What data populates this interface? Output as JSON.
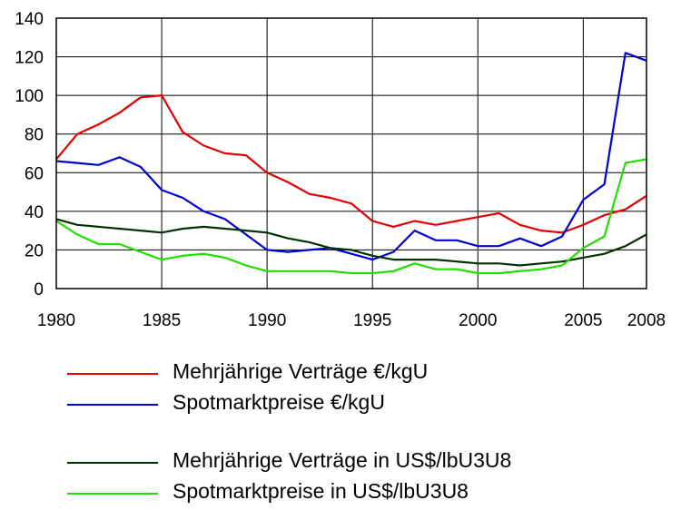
{
  "chart_data": {
    "type": "line",
    "title": "",
    "xlabel": "",
    "ylabel": "",
    "xlim": [
      1980,
      2008
    ],
    "ylim": [
      0,
      140
    ],
    "x_ticks": [
      1980,
      1985,
      1990,
      1995,
      2000,
      2005,
      2008
    ],
    "x_tick_labels": [
      "1980",
      "1985",
      "1990",
      "1995",
      "2000",
      "2005",
      "2008"
    ],
    "y_ticks": [
      0,
      20,
      40,
      60,
      80,
      100,
      120,
      140
    ],
    "y_tick_labels": [
      "0",
      "20",
      "40",
      "60",
      "80",
      "100",
      "120",
      "140"
    ],
    "grid": true,
    "legend_position": "bottom",
    "x": [
      1980,
      1981,
      1982,
      1983,
      1984,
      1985,
      1986,
      1987,
      1988,
      1989,
      1990,
      1991,
      1992,
      1993,
      1994,
      1995,
      1996,
      1997,
      1998,
      1999,
      2000,
      2001,
      2002,
      2003,
      2004,
      2005,
      2006,
      2007,
      2008
    ],
    "series": [
      {
        "name": "Mehrjährige Verträge €/kgU",
        "color": "#e00000",
        "values": [
          67,
          80,
          85,
          91,
          99,
          100,
          81,
          74,
          70,
          69,
          60,
          55,
          49,
          47,
          44,
          35,
          32,
          35,
          33,
          35,
          37,
          39,
          33,
          30,
          29,
          33,
          38,
          41,
          48
        ]
      },
      {
        "name": "Spotmarktpreise €/kgU",
        "color": "#0000cc",
        "values": [
          66,
          65,
          64,
          68,
          63,
          51,
          47,
          40,
          36,
          28,
          20,
          19,
          20,
          21,
          18,
          15,
          19,
          30,
          25,
          25,
          22,
          22,
          26,
          22,
          27,
          46,
          54,
          122,
          118
        ]
      },
      {
        "name": "Mehrjährige Verträge in US$/lbU3U8",
        "color": "#003300",
        "values": [
          36,
          33,
          32,
          31,
          30,
          29,
          31,
          32,
          31,
          30,
          29,
          26,
          24,
          21,
          20,
          17,
          15,
          15,
          15,
          14,
          13,
          13,
          12,
          13,
          14,
          16,
          18,
          22,
          28
        ]
      },
      {
        "name": "Spotmarktpreise in US$/lbU3U8",
        "color": "#22dd00",
        "values": [
          35,
          28,
          23,
          23,
          19,
          15,
          17,
          18,
          16,
          12,
          9,
          9,
          9,
          9,
          8,
          8,
          9,
          13,
          10,
          10,
          8,
          8,
          9,
          10,
          12,
          21,
          27,
          65,
          67
        ]
      }
    ],
    "legend_groups": [
      [
        0,
        1
      ],
      [
        2,
        3
      ]
    ]
  }
}
